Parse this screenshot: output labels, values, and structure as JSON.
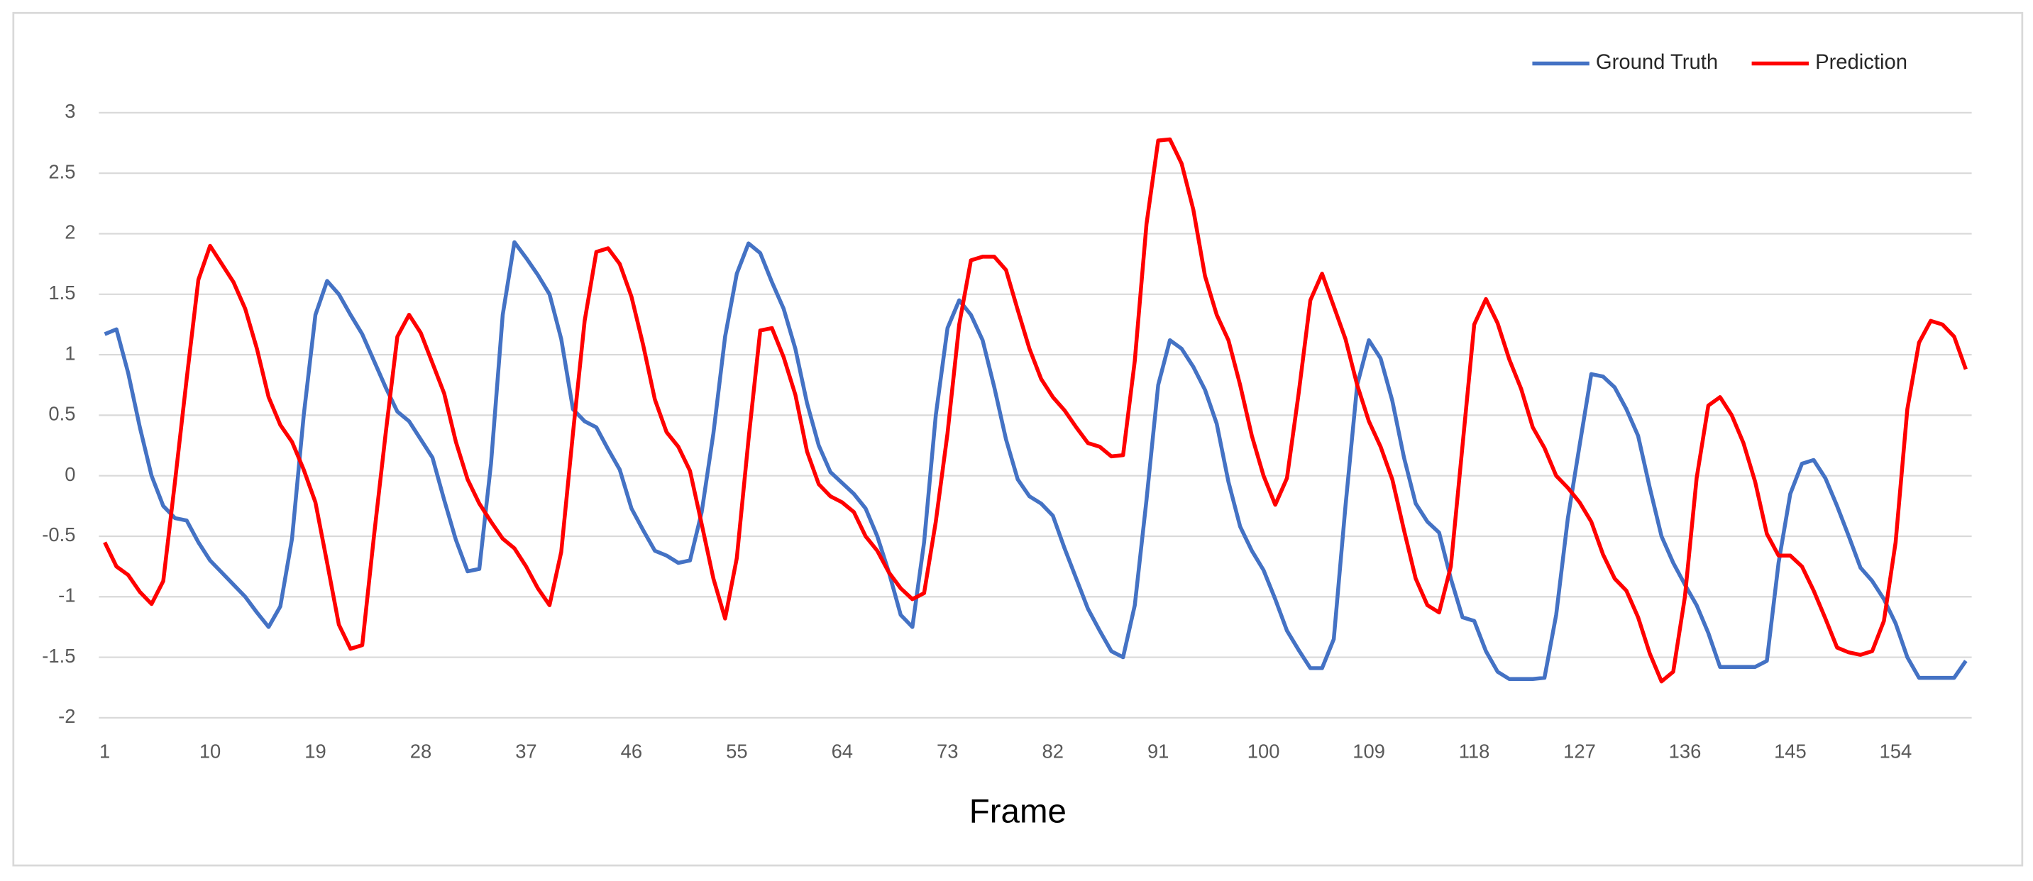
{
  "chart_data": {
    "type": "line",
    "x_label": "Frame",
    "categories": [
      1,
      null,
      null,
      null,
      null,
      null,
      null,
      null,
      null,
      10,
      null,
      null,
      null,
      null,
      null,
      null,
      null,
      null,
      19,
      null,
      null,
      null,
      null,
      null,
      null,
      null,
      null,
      28,
      null,
      null,
      null,
      null,
      null,
      null,
      null,
      null,
      37,
      null,
      null,
      null,
      null,
      null,
      null,
      null,
      null,
      46,
      null,
      null,
      null,
      null,
      null,
      null,
      null,
      null,
      55,
      null,
      null,
      null,
      null,
      null,
      null,
      null,
      null,
      64,
      null,
      null,
      null,
      null,
      null,
      null,
      null,
      null,
      73,
      null,
      null,
      null,
      null,
      null,
      null,
      null,
      null,
      82,
      null,
      null,
      null,
      null,
      null,
      null,
      null,
      null,
      91,
      null,
      null,
      null,
      null,
      null,
      null,
      null,
      null,
      100,
      null,
      null,
      null,
      null,
      null,
      null,
      null,
      null,
      109,
      null,
      null,
      null,
      null,
      null,
      null,
      null,
      null,
      118,
      null,
      null,
      null,
      null,
      null,
      null,
      null,
      null,
      127,
      null,
      null,
      null,
      null,
      null,
      null,
      null,
      null,
      136,
      null,
      null,
      null,
      null,
      null,
      null,
      null,
      null,
      145,
      null,
      null,
      null,
      null,
      null,
      null,
      null,
      null,
      154,
      null,
      null,
      null,
      null,
      null,
      null
    ],
    "series": [
      {
        "name": "Ground Truth",
        "color": "#4472c4",
        "values": [
          1.17,
          1.21,
          0.85,
          0.4,
          0.0,
          -0.25,
          -0.35,
          -0.37,
          -0.55,
          -0.7,
          -0.8,
          -0.9,
          -1.0,
          -1.13,
          -1.25,
          -1.08,
          -0.52,
          0.5,
          1.33,
          1.61,
          1.5,
          1.33,
          1.17,
          0.95,
          0.73,
          0.53,
          0.45,
          0.3,
          0.15,
          -0.2,
          -0.53,
          -0.79,
          -0.77,
          0.1,
          1.33,
          1.93,
          1.8,
          1.66,
          1.5,
          1.13,
          0.55,
          0.45,
          0.4,
          0.22,
          0.05,
          -0.27,
          -0.45,
          -0.62,
          -0.66,
          -0.72,
          -0.7,
          -0.3,
          0.35,
          1.15,
          1.67,
          1.92,
          1.84,
          1.6,
          1.38,
          1.05,
          0.6,
          0.25,
          0.03,
          -0.06,
          -0.15,
          -0.27,
          -0.5,
          -0.8,
          -1.15,
          -1.25,
          -0.55,
          0.5,
          1.22,
          1.45,
          1.33,
          1.12,
          0.73,
          0.3,
          -0.03,
          -0.17,
          -0.23,
          -0.33,
          -0.6,
          -0.85,
          -1.1,
          -1.28,
          -1.45,
          -1.5,
          -1.07,
          -0.2,
          0.75,
          1.12,
          1.05,
          0.9,
          0.71,
          0.43,
          -0.05,
          -0.42,
          -0.62,
          -0.78,
          -1.02,
          -1.28,
          -1.44,
          -1.59,
          -1.59,
          -1.35,
          -0.25,
          0.75,
          1.12,
          0.97,
          0.62,
          0.15,
          -0.23,
          -0.38,
          -0.47,
          -0.85,
          -1.17,
          -1.2,
          -1.45,
          -1.62,
          -1.68,
          -1.68,
          -1.68,
          -1.67,
          -1.15,
          -0.35,
          0.25,
          0.84,
          0.82,
          0.73,
          0.55,
          0.33,
          -0.1,
          -0.5,
          -0.72,
          -0.9,
          -1.07,
          -1.3,
          -1.58,
          -1.58,
          -1.58,
          -1.58,
          -1.53,
          -0.72,
          -0.15,
          0.1,
          0.13,
          -0.02,
          -0.25,
          -0.5,
          -0.76,
          -0.87,
          -1.02,
          -1.22,
          -1.5,
          -1.67,
          -1.67,
          -1.67,
          -1.67,
          -1.53
        ]
      },
      {
        "name": "Prediction",
        "color": "#ff0000",
        "values": [
          -0.55,
          -0.75,
          -0.82,
          -0.96,
          -1.06,
          -0.87,
          -0.05,
          0.8,
          1.62,
          1.9,
          1.75,
          1.6,
          1.38,
          1.05,
          0.65,
          0.42,
          0.28,
          0.05,
          -0.22,
          -0.72,
          -1.23,
          -1.43,
          -1.4,
          -0.5,
          0.35,
          1.15,
          1.33,
          1.18,
          0.93,
          0.68,
          0.28,
          -0.03,
          -0.23,
          -0.38,
          -0.52,
          -0.6,
          -0.75,
          -0.93,
          -1.07,
          -0.63,
          0.35,
          1.28,
          1.85,
          1.88,
          1.75,
          1.48,
          1.08,
          0.63,
          0.36,
          0.24,
          0.04,
          -0.4,
          -0.85,
          -1.18,
          -0.68,
          0.3,
          1.2,
          1.22,
          0.98,
          0.67,
          0.2,
          -0.07,
          -0.17,
          -0.22,
          -0.3,
          -0.5,
          -0.62,
          -0.8,
          -0.93,
          -1.02,
          -0.97,
          -0.38,
          0.35,
          1.25,
          1.78,
          1.81,
          1.81,
          1.7,
          1.37,
          1.05,
          0.8,
          0.65,
          0.54,
          0.4,
          0.27,
          0.24,
          0.16,
          0.17,
          0.95,
          2.08,
          2.77,
          2.78,
          2.58,
          2.2,
          1.65,
          1.33,
          1.12,
          0.75,
          0.33,
          0.0,
          -0.24,
          -0.02,
          0.68,
          1.45,
          1.67,
          1.4,
          1.13,
          0.75,
          0.45,
          0.24,
          -0.03,
          -0.45,
          -0.85,
          -1.07,
          -1.13,
          -0.75,
          0.25,
          1.25,
          1.46,
          1.26,
          0.96,
          0.72,
          0.4,
          0.23,
          0.0,
          -0.1,
          -0.22,
          -0.38,
          -0.65,
          -0.85,
          -0.95,
          -1.17,
          -1.47,
          -1.7,
          -1.62,
          -1.0,
          -0.02,
          0.58,
          0.65,
          0.5,
          0.27,
          -0.05,
          -0.48,
          -0.66,
          -0.66,
          -0.75,
          -0.95,
          -1.18,
          -1.42,
          -1.46,
          -1.48,
          -1.45,
          -1.2,
          -0.55,
          0.55,
          1.1,
          1.28,
          1.25,
          1.15,
          0.88
        ]
      }
    ],
    "ylim": [
      -2,
      3
    ],
    "yticks": [
      -2,
      -1.5,
      -1,
      -0.5,
      0,
      0.5,
      1,
      1.5,
      2,
      2.5,
      3
    ],
    "grid": true,
    "legend": "top-right"
  }
}
